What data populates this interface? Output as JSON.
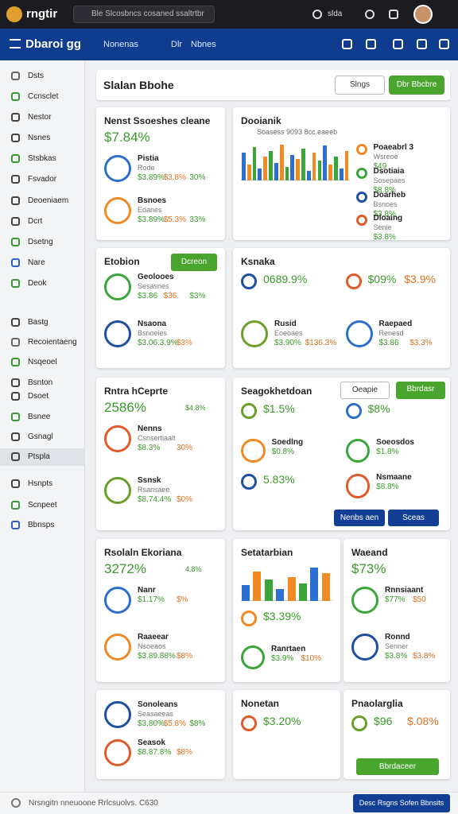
{
  "topbar": {
    "logo": "rngtir",
    "search": "Ble Slcosbncs cosaned ssaltrtbr",
    "status": "slda"
  },
  "header": {
    "title": "Dbaroi gg",
    "tabs": [
      "Nonenas",
      "Dlr",
      "Nbnes"
    ]
  },
  "sidebar": {
    "items": [
      "Dsts",
      "Ccnsclet",
      "Nestor",
      "Nsnes",
      "Stsbkas",
      "Fsvador",
      "Deoeniaem",
      "Dcrt",
      "Dsetng",
      "Nare",
      "Deok",
      "Bastg",
      "Recoientaeng",
      "Nsqeoel",
      "Bsnton",
      "Dsoet",
      "Bsnee",
      "Gsnagl",
      "Ptspla",
      "Hsnpts",
      "Scnpeet",
      "Bbnsps"
    ]
  },
  "main": {
    "title": "Slalan Bbohe",
    "buttons": [
      "Slngs",
      "Dbr Bbcbre"
    ]
  },
  "cards": [
    {
      "title": "Nenst Ssoeshes cleane",
      "stat": "$7.84%",
      "items": [
        {
          "name": "Pistia",
          "detail": "Rode",
          "values": [
            "$3.89%",
            "$3.8%",
            "30%"
          ]
        },
        {
          "name": "Bsnoes",
          "detail": "Eoanes",
          "values": [
            "$3.89%",
            "$5.3%",
            "33%"
          ]
        }
      ]
    },
    {
      "title": "Dooianik",
      "subtitle": "Soasess 9093 8cc.eaeeb",
      "bars": [
        70,
        40,
        85,
        30,
        60,
        75,
        45,
        90,
        35,
        65,
        55,
        80,
        25,
        70,
        50,
        88,
        40,
        60,
        30,
        75
      ],
      "items": [
        {
          "name": "Poaeabrl 3",
          "detail": "Wsreoe",
          "values": [
            "$49"
          ]
        },
        {
          "name": "Dsotiaia",
          "detail": "Sosepaes",
          "values": [
            "$8.8%"
          ]
        },
        {
          "name": "Doarheb",
          "detail": "Bsnoes",
          "values": [
            "$3.8%"
          ]
        },
        {
          "name": "Dloaing",
          "detail": "Senie",
          "values": [
            "$3.8%"
          ]
        }
      ]
    },
    {
      "title": "Etobion",
      "button": "Dcreon",
      "items": [
        {
          "name": "Geolooes",
          "detail": "Sesasnes",
          "values": [
            "$3.86",
            "$36.",
            "$3%"
          ]
        },
        {
          "name": "Nsaona",
          "detail": "Bsnoeies",
          "values": [
            "$3.06.3.9%",
            "$3%"
          ]
        }
      ]
    },
    {
      "title": "Ksnaka",
      "items": [
        {
          "values": [
            "0689.9%"
          ]
        },
        {
          "values": [
            "$09%",
            "$3.9%"
          ]
        },
        {
          "name": "Rusid",
          "detail": "Eoeoaes",
          "values": [
            "$3.90%",
            "$136.3%"
          ]
        },
        {
          "name": "Raepaed",
          "detail": "Renesd",
          "values": [
            "$3.86",
            "$3.3%"
          ]
        }
      ]
    },
    {
      "title": "Rntra hCeprte",
      "stat": "2586%",
      "statNote": "$4.8%",
      "items": [
        {
          "name": "Nenns",
          "detail": "Csnsertiaalt",
          "values": [
            "$8.3%",
            "30%"
          ]
        },
        {
          "name": "Ssnsk",
          "detail": "Rsansaee",
          "values": [
            "$8.74.4%",
            "$0%"
          ]
        }
      ]
    },
    {
      "title": "Seagokhetdoan",
      "buttons": [
        "Oeapie",
        "Bbrdasr"
      ],
      "items": [
        {
          "values": [
            "$1.5%"
          ]
        },
        {
          "values": [
            "$8%"
          ]
        },
        {
          "name": "Soedlng",
          "values": [
            "$0.8%"
          ]
        },
        {
          "name": "Soeosdos",
          "values": [
            "$1.8%"
          ]
        },
        {
          "values": [
            "5.83%"
          ]
        },
        {
          "name": "Nsmaane",
          "values": [
            "$8.8%"
          ]
        }
      ],
      "footerButtons": [
        "Nenbs aen",
        "Sceas"
      ]
    },
    {
      "title": "Rsolaln Ekoriana",
      "stat": "3272%",
      "statNote": "4.8%",
      "items": [
        {
          "name": "Nanr",
          "values": [
            "$1.17%",
            "$%"
          ]
        },
        {
          "name": "Raaeear",
          "detail": "Nsoeaos",
          "values": [
            "$3.89.88%",
            "$8%"
          ]
        }
      ]
    },
    {
      "title": "Setatarbian",
      "items": [
        {
          "values": [
            "$3.39%"
          ]
        },
        {
          "name": "Ranrtaen",
          "values": [
            "$3.9%",
            "$10%"
          ]
        }
      ],
      "bars": [
        40,
        75,
        55,
        30,
        60,
        45,
        85,
        70
      ]
    },
    {
      "title": "Waeand",
      "stat": "$73%",
      "items": [
        {
          "name": "Rnnsiaant",
          "values": [
            "$77%",
            "$50"
          ]
        },
        {
          "name": "Ronnd",
          "detail": "Senner",
          "values": [
            "$3.8%",
            "$3.8%"
          ]
        }
      ]
    },
    {
      "items": [
        {
          "name": "Sonoleans",
          "detail": "Seasaeeas",
          "values": [
            "$3.80%",
            "$5.8%",
            "$8%"
          ]
        },
        {
          "name": "Seasok",
          "values": [
            "$8.87.8%",
            "$8%"
          ]
        }
      ]
    },
    {
      "title": "Nonetan",
      "items": [
        {
          "values": [
            "$3.20%"
          ]
        }
      ]
    },
    {
      "title": "Pnaolarglia",
      "items": [
        {
          "values": [
            "$96",
            "$.08%"
          ]
        }
      ],
      "footerButtons": [
        "Bbrdaceer"
      ]
    }
  ],
  "footer": {
    "text": "Nrsngitn nneuoone Rrlcsuolvs. C630",
    "button": "Desc Rsgns Sofen Bbnsits"
  }
}
